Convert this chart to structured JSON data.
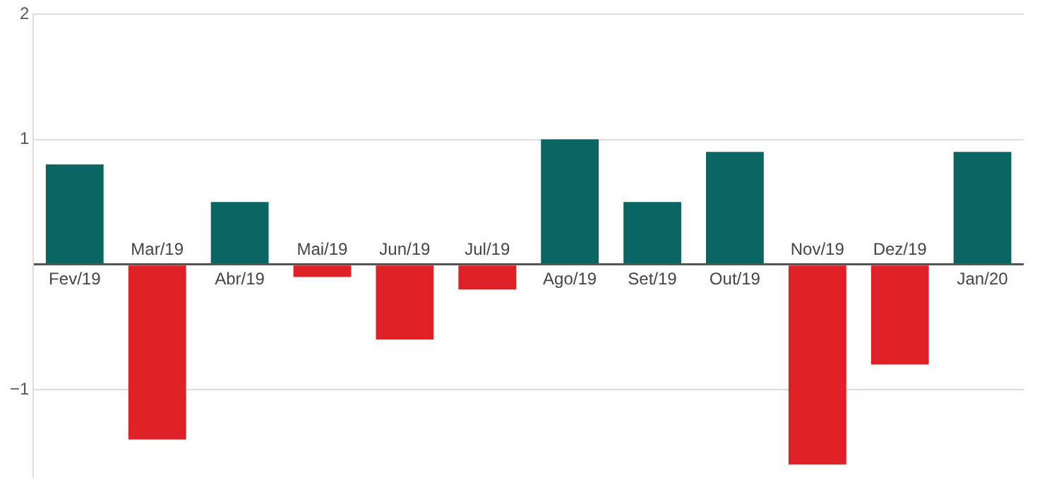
{
  "chart_data": {
    "type": "bar",
    "categories": [
      "Fev/19",
      "Mar/19",
      "Abr/19",
      "Mai/19",
      "Jun/19",
      "Jul/19",
      "Ago/19",
      "Set/19",
      "Out/19",
      "Nov/19",
      "Dez/19",
      "Jan/20"
    ],
    "values": [
      0.8,
      -1.4,
      0.5,
      -0.1,
      -0.6,
      -0.2,
      1.0,
      0.5,
      0.9,
      -1.6,
      -0.8,
      0.9
    ],
    "colors": [
      "#0b6663",
      "#e02027",
      "#0b6663",
      "#e02027",
      "#e02027",
      "#e02027",
      "#0b6663",
      "#0b6663",
      "#0b6663",
      "#e02027",
      "#e02027",
      "#0b6663"
    ],
    "ylim": [
      -1.7,
      2
    ],
    "yticks": [
      {
        "value": -1,
        "label": "−1"
      },
      {
        "value": 0,
        "label": null
      },
      1,
      2
    ],
    "grid": "y"
  }
}
